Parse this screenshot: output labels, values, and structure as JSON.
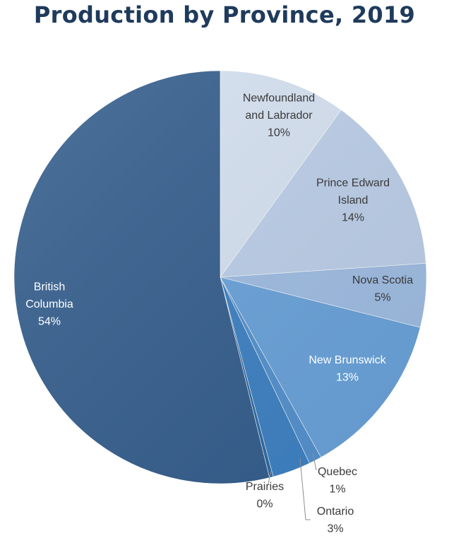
{
  "chart_data": {
    "type": "pie",
    "title": "Production by Province, 2019",
    "slices": [
      {
        "label": "Newfoundland and Labrador",
        "label_lines": [
          "Newfoundland",
          "and Labrador"
        ],
        "percent_label": "10%",
        "value": 10,
        "color": "#d6e2f2",
        "label_color": "#3a3a3a"
      },
      {
        "label": "Prince Edward Island",
        "label_lines": [
          "Prince Edward",
          "Island"
        ],
        "percent_label": "14%",
        "value": 14,
        "color": "#bccfe9",
        "label_color": "#3a3a3a"
      },
      {
        "label": "Nova Scotia",
        "label_lines": [
          "Nova Scotia"
        ],
        "percent_label": "5%",
        "value": 5,
        "color": "#9fbde3",
        "label_color": "#3a3a3a"
      },
      {
        "label": "New Brunswick",
        "label_lines": [
          "New Brunswick"
        ],
        "percent_label": "13%",
        "value": 13,
        "color": "#6aa3db",
        "label_color": "#ffffff"
      },
      {
        "label": "Quebec",
        "label_lines": [
          "Quebec"
        ],
        "percent_label": "1%",
        "value": 1,
        "color": "#5592cf",
        "label_color": "#3a3a3a"
      },
      {
        "label": "Ontario",
        "label_lines": [
          "Ontario"
        ],
        "percent_label": "3%",
        "value": 3,
        "color": "#3e82c4",
        "label_color": "#3a3a3a"
      },
      {
        "label": "Prairies",
        "label_lines": [
          "Prairies"
        ],
        "percent_label": "0%",
        "value": 0.3,
        "color": "#2f6ba6",
        "label_color": "#3a3a3a"
      },
      {
        "label": "British Columbia",
        "label_lines": [
          "British",
          "Columbia"
        ],
        "percent_label": "54%",
        "value": 54,
        "color": "#355f8e",
        "label_color": "#ffffff"
      }
    ]
  }
}
